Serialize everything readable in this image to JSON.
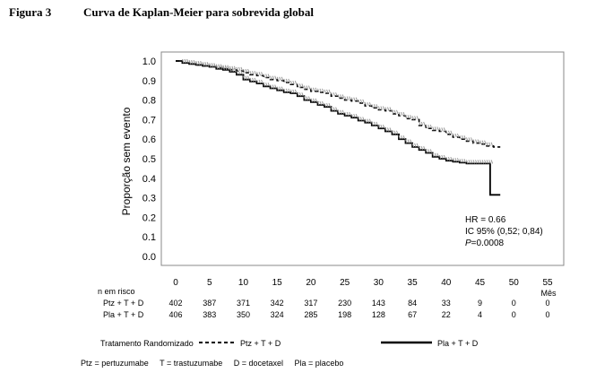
{
  "figure": {
    "label": "Figura 3",
    "title": "Curva de Kaplan-Meier para sobrevida global"
  },
  "chart_data": {
    "type": "line",
    "xlabel": "",
    "x_unit_label": "Mês",
    "ylabel": "Proporção sem evento",
    "xlim": [
      0,
      55
    ],
    "ylim": [
      0.0,
      1.0
    ],
    "x_ticks": [
      0,
      5,
      10,
      15,
      20,
      25,
      30,
      35,
      40,
      45,
      50,
      55
    ],
    "y_ticks": [
      1.0,
      0.9,
      0.8,
      0.7,
      0.6,
      0.5,
      0.4,
      0.3,
      0.2,
      0.1,
      0.0
    ],
    "y_tick_labels": [
      "1.0",
      "0.9",
      "0.8",
      "0.7",
      "0.6",
      "0.5",
      "0.4",
      "0.3",
      "0.2",
      "0.1",
      "0.0"
    ],
    "grid": false,
    "series": [
      {
        "name": "Ptz + T + D",
        "style": "dashed",
        "color": "#000000",
        "points": [
          [
            0,
            1.0
          ],
          [
            1,
            0.99
          ],
          [
            2,
            0.985
          ],
          [
            3,
            0.98
          ],
          [
            4,
            0.975
          ],
          [
            5,
            0.97
          ],
          [
            6,
            0.965
          ],
          [
            7,
            0.96
          ],
          [
            8,
            0.955
          ],
          [
            9,
            0.95
          ],
          [
            10,
            0.94
          ],
          [
            11,
            0.93
          ],
          [
            12,
            0.925
          ],
          [
            13,
            0.915
          ],
          [
            14,
            0.905
          ],
          [
            15,
            0.9
          ],
          [
            16,
            0.89
          ],
          [
            17,
            0.88
          ],
          [
            18,
            0.865
          ],
          [
            19,
            0.855
          ],
          [
            20,
            0.845
          ],
          [
            21,
            0.84
          ],
          [
            22,
            0.835
          ],
          [
            23,
            0.82
          ],
          [
            24,
            0.81
          ],
          [
            25,
            0.8
          ],
          [
            26,
            0.795
          ],
          [
            27,
            0.785
          ],
          [
            28,
            0.77
          ],
          [
            29,
            0.76
          ],
          [
            30,
            0.75
          ],
          [
            31,
            0.745
          ],
          [
            32,
            0.73
          ],
          [
            33,
            0.72
          ],
          [
            34,
            0.705
          ],
          [
            35,
            0.7
          ],
          [
            36,
            0.67
          ],
          [
            37,
            0.655
          ],
          [
            38,
            0.645
          ],
          [
            39,
            0.64
          ],
          [
            40,
            0.625
          ],
          [
            41,
            0.61
          ],
          [
            42,
            0.6
          ],
          [
            43,
            0.59
          ],
          [
            44,
            0.58
          ],
          [
            45,
            0.575
          ],
          [
            46,
            0.565
          ],
          [
            47,
            0.56
          ],
          [
            48,
            0.56
          ]
        ]
      },
      {
        "name": "Pla + T + D",
        "style": "solid",
        "color": "#000000",
        "points": [
          [
            0,
            1.0
          ],
          [
            1,
            0.99
          ],
          [
            2,
            0.985
          ],
          [
            3,
            0.98
          ],
          [
            4,
            0.975
          ],
          [
            5,
            0.97
          ],
          [
            6,
            0.96
          ],
          [
            7,
            0.955
          ],
          [
            8,
            0.945
          ],
          [
            9,
            0.93
          ],
          [
            10,
            0.905
          ],
          [
            11,
            0.895
          ],
          [
            12,
            0.885
          ],
          [
            13,
            0.87
          ],
          [
            14,
            0.86
          ],
          [
            15,
            0.85
          ],
          [
            16,
            0.84
          ],
          [
            17,
            0.835
          ],
          [
            18,
            0.82
          ],
          [
            19,
            0.8
          ],
          [
            20,
            0.79
          ],
          [
            21,
            0.775
          ],
          [
            22,
            0.765
          ],
          [
            23,
            0.745
          ],
          [
            24,
            0.73
          ],
          [
            25,
            0.72
          ],
          [
            26,
            0.71
          ],
          [
            27,
            0.695
          ],
          [
            28,
            0.685
          ],
          [
            29,
            0.67
          ],
          [
            30,
            0.655
          ],
          [
            31,
            0.64
          ],
          [
            32,
            0.625
          ],
          [
            33,
            0.6
          ],
          [
            34,
            0.58
          ],
          [
            35,
            0.56
          ],
          [
            36,
            0.545
          ],
          [
            37,
            0.53
          ],
          [
            38,
            0.51
          ],
          [
            39,
            0.5
          ],
          [
            40,
            0.49
          ],
          [
            41,
            0.485
          ],
          [
            42,
            0.48
          ],
          [
            43,
            0.475
          ],
          [
            44,
            0.475
          ],
          [
            45,
            0.475
          ],
          [
            46,
            0.475
          ],
          [
            46.5,
            0.315
          ],
          [
            48,
            0.315
          ]
        ]
      }
    ],
    "annotation": {
      "hr": "HR = 0.66",
      "ic": "IC 95% (0,52; 0,84)",
      "p_symbol": "P",
      "p_value": "=0.0008"
    },
    "risk_table": {
      "header": "n em risco",
      "x": [
        0,
        5,
        10,
        15,
        20,
        25,
        30,
        35,
        40,
        45,
        50,
        55
      ],
      "rows": [
        {
          "label": "Ptz + T + D",
          "values": [
            402,
            387,
            371,
            342,
            317,
            230,
            143,
            84,
            33,
            9,
            0,
            0
          ]
        },
        {
          "label": "Pla + T + D",
          "values": [
            406,
            383,
            350,
            324,
            285,
            198,
            128,
            67,
            22,
            4,
            0,
            0
          ]
        }
      ]
    },
    "legend": {
      "position": "bottom",
      "title": "Tratamento Randomizado",
      "entries": [
        "Ptz + T + D",
        "Pla + T + D"
      ]
    },
    "footnote": "Ptz = pertuzumabe     T = trastuzumabe     D = docetaxel     Pla = placebo"
  }
}
